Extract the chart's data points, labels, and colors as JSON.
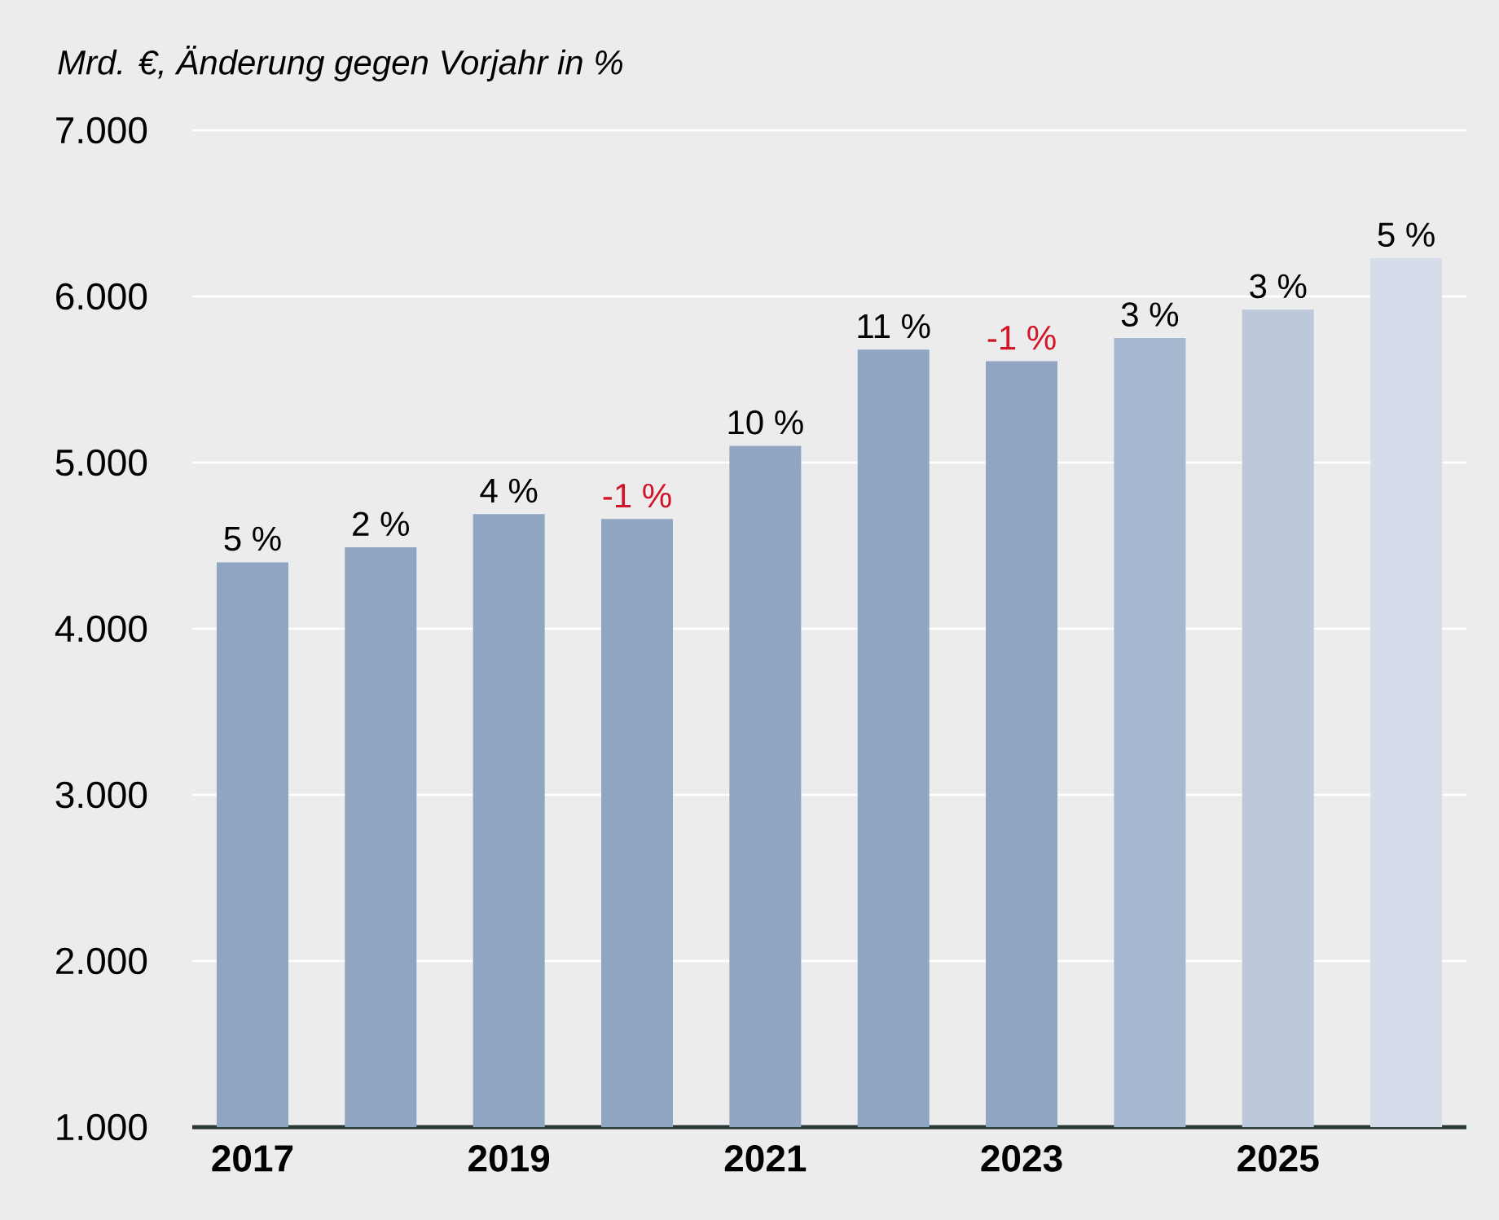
{
  "chart_data": {
    "type": "bar",
    "title": "*Mrd. €, Änderung gegen Vorjahr in %*",
    "categories": [
      "2017",
      null,
      "2019",
      null,
      "2021",
      null,
      "2023",
      null,
      "2025",
      null
    ],
    "values": [
      4400,
      4490,
      4690,
      4660,
      5100,
      5680,
      5610,
      5750,
      5920,
      6230
    ],
    "colors": [
      "#8fa5c2",
      "#8fa5c2",
      "#8fa5c2",
      "#8fa5c2",
      "#8fa5c2",
      "#8fa5c2",
      "#8fa5c2",
      "#a6b7d0",
      "#bdc8db",
      "#d6dce9"
    ],
    "annotations": [
      "5 %",
      "2 %",
      "4 %",
      "-1 %",
      "10 %",
      "11 %",
      "-1 %",
      "3 %",
      "3 %",
      "5 %"
    ],
    "ylim": [
      1000,
      7000
    ],
    "yticks": [
      {
        "value": 1000,
        "label": "1.000"
      },
      {
        "value": 2000,
        "label": "2.000"
      },
      {
        "value": 3000,
        "label": "3.000"
      },
      {
        "value": 4000,
        "label": "4.000"
      },
      {
        "value": 5000,
        "label": "5.000"
      },
      {
        "value": 6000,
        "label": "6.000"
      },
      {
        "value": 7000,
        "label": "7.000"
      }
    ],
    "grid": "y"
  }
}
